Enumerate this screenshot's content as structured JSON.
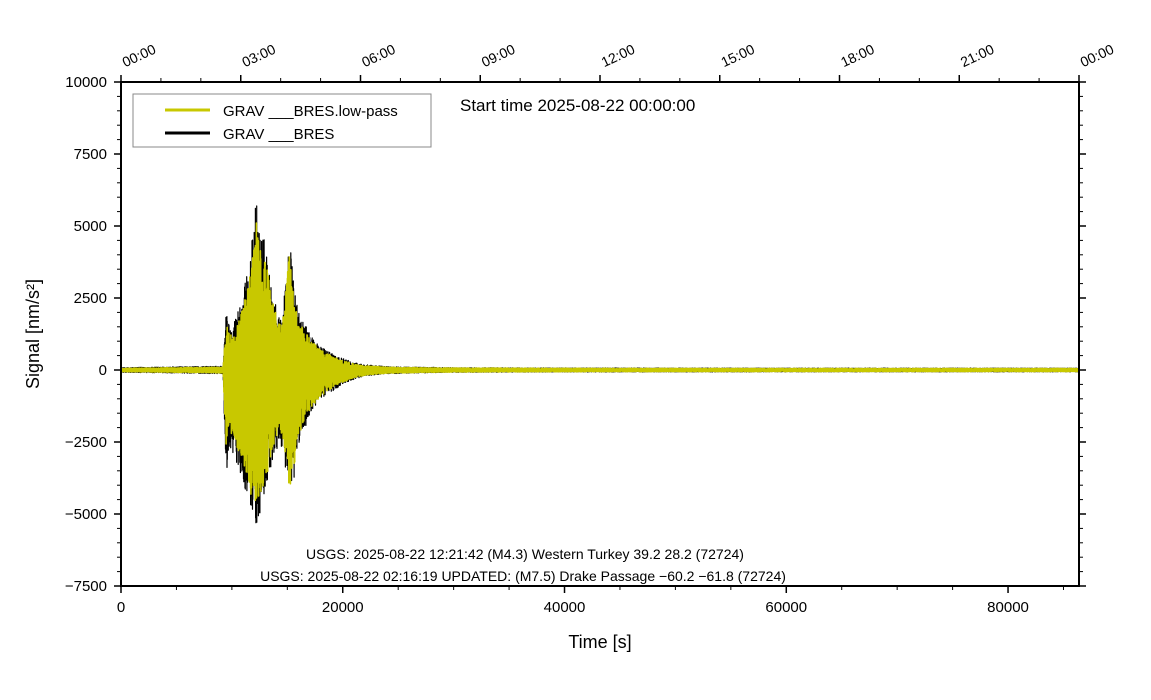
{
  "chart_data": {
    "type": "line",
    "title": "",
    "xlabel": "Time [s]",
    "ylabel": "Signal [nm/s²]",
    "xlim": [
      0,
      86400
    ],
    "ylim": [
      -7500,
      10000
    ],
    "x_ticks": [
      0,
      20000,
      40000,
      60000,
      80000
    ],
    "x_tick_labels": [
      "0",
      "20000",
      "40000",
      "60000",
      "80000"
    ],
    "y_ticks": [
      -7500,
      -5000,
      -2500,
      0,
      2500,
      5000,
      7500,
      10000
    ],
    "y_tick_labels": [
      "−7500",
      "−5000",
      "−2500",
      "0",
      "2500",
      "5000",
      "7500",
      "10000"
    ],
    "top_axis": {
      "ticks": [
        0,
        10800,
        21600,
        32400,
        43200,
        54000,
        64800,
        75600,
        86400
      ],
      "labels": [
        "00:00",
        "03:00",
        "06:00",
        "09:00",
        "12:00",
        "15:00",
        "18:00",
        "21:00",
        "00:00"
      ]
    },
    "grid": false,
    "legend_position": "top-left",
    "info_text": "Start time 2025-08-22 00:00:00",
    "annotations": [
      "USGS: 2025-08-22 12:21:42 (M4.3) Western Turkey 39.2 28.2 (72724)",
      "USGS: 2025-08-22 02:16:19 UPDATED: (M7.5) Drake Passage −60.2 −61.8 (72724)"
    ],
    "envelope_x": [
      0,
      9200,
      9500,
      9800,
      10300,
      11000,
      11600,
      12200,
      12500,
      13000,
      13500,
      14200,
      14600,
      15200,
      15600,
      16000,
      17000,
      18000,
      19000,
      20000,
      21000,
      22000,
      24000,
      27000,
      30000,
      40000,
      60000,
      86400
    ],
    "series": [
      {
        "name": "GRAV ___BRES.low-pass",
        "color": "#c8c800",
        "linewidth": 2,
        "envelope_upper": [
          60,
          100,
          1600,
          1200,
          1300,
          2200,
          3200,
          5300,
          4200,
          4000,
          2700,
          1600,
          1800,
          4200,
          2500,
          1800,
          1100,
          700,
          500,
          320,
          220,
          150,
          100,
          80,
          70,
          60,
          55,
          55
        ],
        "envelope_lower": [
          -60,
          -100,
          -2800,
          -2100,
          -2500,
          -3200,
          -4100,
          -5200,
          -4400,
          -4000,
          -3000,
          -2200,
          -2300,
          -4200,
          -3400,
          -2300,
          -1400,
          -900,
          -650,
          -420,
          -280,
          -180,
          -110,
          -90,
          -70,
          -60,
          -55,
          -55
        ]
      },
      {
        "name": "GRAV ___BRES",
        "color": "#000000",
        "linewidth": 1.5,
        "envelope_upper": [
          80,
          130,
          2100,
          1500,
          1800,
          2700,
          3700,
          6000,
          4800,
          4500,
          3000,
          1900,
          2100,
          4600,
          2900,
          2000,
          1300,
          800,
          600,
          400,
          260,
          180,
          120,
          95,
          80,
          70,
          65,
          65
        ],
        "envelope_lower": [
          -80,
          -130,
          -3900,
          -2600,
          -3100,
          -3800,
          -4800,
          -5400,
          -5100,
          -4600,
          -3500,
          -2600,
          -2700,
          -4500,
          -3900,
          -2600,
          -1600,
          -1000,
          -750,
          -480,
          -320,
          -200,
          -130,
          -100,
          -80,
          -70,
          -65,
          -65
        ]
      }
    ]
  }
}
